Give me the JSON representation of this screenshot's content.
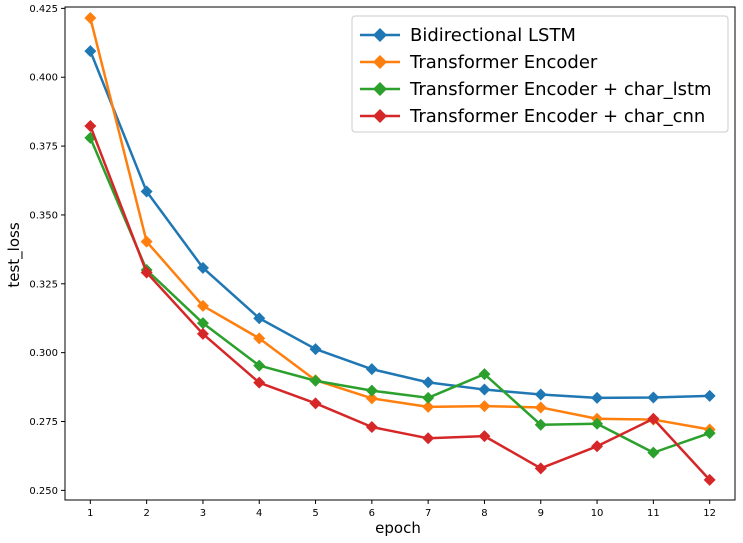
{
  "chart_data": {
    "type": "line",
    "xlabel": "epoch",
    "ylabel": "test_loss",
    "x": [
      1,
      2,
      3,
      4,
      5,
      6,
      7,
      8,
      9,
      10,
      11,
      12
    ],
    "xlim": [
      0.55,
      12.45
    ],
    "ylim": [
      0.2465,
      0.4255
    ],
    "yticks": [
      0.25,
      0.275,
      0.3,
      0.325,
      0.35,
      0.375,
      0.4,
      0.425
    ],
    "ytick_labels": [
      "0.250",
      "0.275",
      "0.300",
      "0.325",
      "0.350",
      "0.375",
      "0.400",
      "0.425"
    ],
    "xtick_labels": [
      "1",
      "2",
      "3",
      "4",
      "5",
      "6",
      "7",
      "8",
      "9",
      "10",
      "11",
      "12"
    ],
    "grid": false,
    "legend_position": "top-right",
    "marker": "diamond",
    "series": [
      {
        "name": "Bidirectional LSTM",
        "color": "#1f77b4",
        "values": [
          0.4095,
          0.3585,
          0.3308,
          0.3125,
          0.3013,
          0.294,
          0.2892,
          0.2866,
          0.2848,
          0.2836,
          0.2837,
          0.2843
        ]
      },
      {
        "name": "Transformer Encoder",
        "color": "#ff7f0e",
        "values": [
          0.4215,
          0.3403,
          0.317,
          0.3052,
          0.29,
          0.2834,
          0.2803,
          0.2806,
          0.2801,
          0.276,
          0.2757,
          0.2721
        ]
      },
      {
        "name": "Transformer Encoder + char_lstm",
        "color": "#2ca02c",
        "values": [
          0.378,
          0.33,
          0.3107,
          0.2953,
          0.2898,
          0.2862,
          0.2836,
          0.2922,
          0.2738,
          0.2742,
          0.2637,
          0.2708
        ]
      },
      {
        "name": "Transformer Encoder + char_cnn",
        "color": "#d62728",
        "values": [
          0.3823,
          0.3291,
          0.3068,
          0.2891,
          0.2816,
          0.273,
          0.2689,
          0.2697,
          0.258,
          0.266,
          0.276,
          0.2538
        ]
      }
    ]
  }
}
